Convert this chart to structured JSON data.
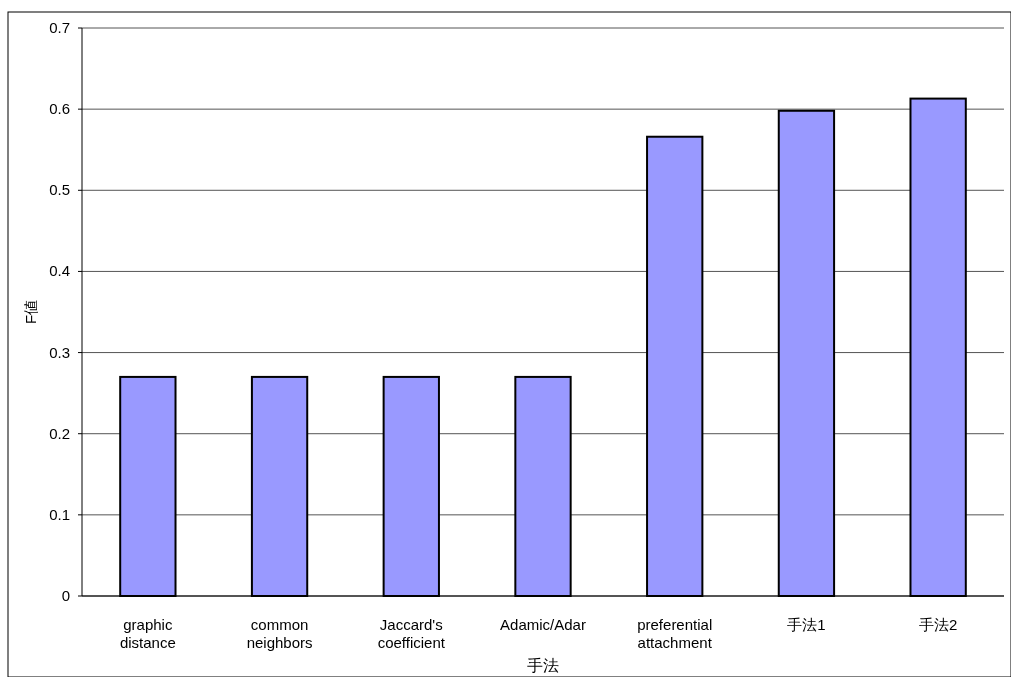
{
  "chart_data": {
    "type": "bar",
    "xlabel": "手法",
    "ylabel": "F値",
    "categories": [
      "graphic distance",
      "common neighbors",
      "Jaccard's coefficient",
      "Adamic/Adar",
      "preferential attachment",
      "手法1",
      "手法2"
    ],
    "values": [
      0.27,
      0.27,
      0.27,
      0.27,
      0.566,
      0.598,
      0.613
    ],
    "color": "#9999ff",
    "ylim": [
      0,
      0.7
    ],
    "yticks": [
      0,
      0.1,
      0.2,
      0.3,
      0.4,
      0.5,
      0.6,
      0.7
    ],
    "grid": "y"
  }
}
